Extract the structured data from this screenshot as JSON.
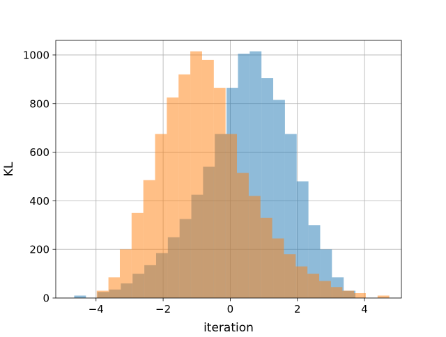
{
  "chart_data": {
    "type": "bar",
    "subtype": "histogram",
    "title": "",
    "xlabel": "iteration",
    "ylabel": "KL",
    "xlim": [
      -5.2,
      5.1
    ],
    "ylim": [
      0,
      1060
    ],
    "grid": true,
    "legend": "none",
    "x_ticks": [
      -4,
      -2,
      0,
      2,
      4
    ],
    "x_tick_labels": [
      "−4",
      "−2",
      "0",
      "2",
      "4"
    ],
    "y_ticks": [
      0,
      200,
      400,
      600,
      800,
      1000
    ],
    "y_tick_labels": [
      "0",
      "200",
      "400",
      "600",
      "800",
      "1000"
    ],
    "series": [
      {
        "color": "#1f77b4",
        "opacity": 0.5,
        "bin_edges": [
          -4.65,
          -4.3,
          -3.96,
          -3.61,
          -3.26,
          -2.91,
          -2.56,
          -2.21,
          -1.86,
          -1.51,
          -1.16,
          -0.81,
          -0.46,
          -0.11,
          0.23,
          0.58,
          0.93,
          1.28,
          1.63,
          1.98,
          2.33,
          2.68,
          3.03,
          3.38,
          3.73,
          4.08
        ],
        "values": [
          10,
          0,
          25,
          35,
          60,
          100,
          135,
          185,
          250,
          325,
          425,
          540,
          675,
          865,
          1005,
          1015,
          905,
          815,
          675,
          480,
          300,
          200,
          85,
          30,
          0
        ]
      },
      {
        "color": "#ff7f0e",
        "opacity": 0.5,
        "bin_edges": [
          -3.98,
          -3.63,
          -3.29,
          -2.94,
          -2.59,
          -2.24,
          -1.89,
          -1.54,
          -1.19,
          -0.84,
          -0.49,
          -0.14,
          0.2,
          0.55,
          0.9,
          1.25,
          1.6,
          1.95,
          2.3,
          2.65,
          3.0,
          3.34,
          3.69,
          4.04,
          4.39,
          4.74
        ],
        "values": [
          30,
          85,
          200,
          350,
          485,
          675,
          825,
          920,
          1015,
          980,
          865,
          675,
          515,
          420,
          330,
          245,
          180,
          130,
          100,
          70,
          45,
          30,
          20,
          0,
          10
        ]
      }
    ]
  }
}
